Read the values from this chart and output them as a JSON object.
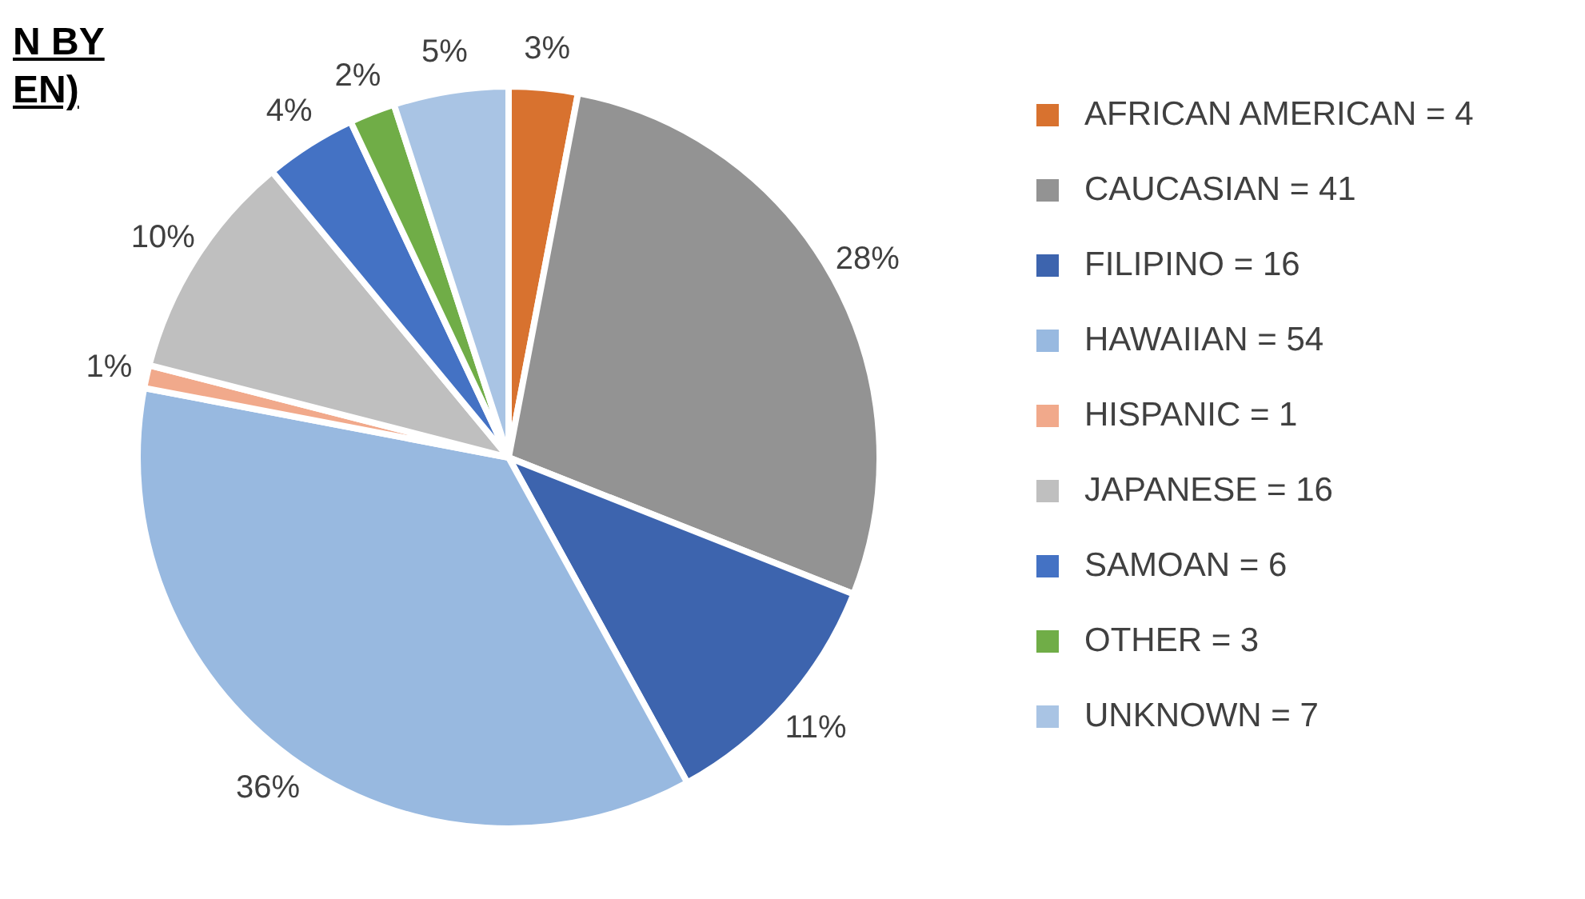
{
  "chart_data": {
    "type": "pie",
    "title": "N BY\nEN)",
    "categories": [
      "AFRICAN AMERICAN = 4",
      "CAUCASIAN = 41",
      "FILIPINO = 16",
      "HAWAIIAN = 54",
      "HISPANIC = 1",
      "JAPANESE = 16",
      "SAMOAN = 6",
      "OTHER = 3",
      "UNKNOWN = 7"
    ],
    "values": [
      3,
      28,
      11,
      36,
      1,
      10,
      4,
      2,
      5
    ],
    "colors": [
      "#d8722f",
      "#939393",
      "#3d64ae",
      "#98b9e0",
      "#f1a98b",
      "#bfbfbf",
      "#4472c4",
      "#70ad47",
      "#a9c4e4"
    ],
    "value_labels": [
      "3%",
      "28%",
      "11%",
      "36%",
      "1%",
      "10%",
      "4%",
      "2%",
      "5%"
    ],
    "legend": "right"
  }
}
